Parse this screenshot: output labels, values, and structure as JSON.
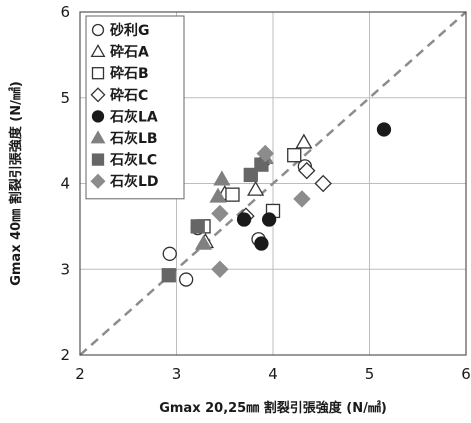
{
  "chart_data": {
    "type": "scatter",
    "xlabel": "Gmax 20,25㎜ 割裂引張強度 (N/㎟)",
    "ylabel": "Gmax 40㎜ 割裂引張強度 (N/㎟)",
    "xlim": [
      2,
      6
    ],
    "ylim": [
      2,
      6
    ],
    "x_ticks": [
      "2",
      "3",
      "4",
      "5",
      "6"
    ],
    "y_ticks": [
      "2",
      "3",
      "4",
      "5",
      "6"
    ],
    "grid": true,
    "legend_position": "top-left",
    "reference_line": {
      "from": [
        2,
        2
      ],
      "to": [
        6,
        6
      ],
      "style": "dashed",
      "color": "#8c8c8c"
    },
    "series": [
      {
        "name": "砂利G",
        "marker": "circle",
        "filled": false,
        "color": "#333333",
        "points": [
          [
            2.93,
            3.18
          ],
          [
            3.1,
            2.88
          ],
          [
            3.22,
            3.48
          ],
          [
            3.85,
            3.35
          ],
          [
            4.33,
            4.2
          ]
        ]
      },
      {
        "name": "砕石A",
        "marker": "triangle",
        "filled": false,
        "color": "#333333",
        "points": [
          [
            3.3,
            3.32
          ],
          [
            3.5,
            3.88
          ],
          [
            3.82,
            3.93
          ],
          [
            4.32,
            4.48
          ]
        ]
      },
      {
        "name": "砕石B",
        "marker": "square",
        "filled": false,
        "color": "#333333",
        "points": [
          [
            3.28,
            3.5
          ],
          [
            3.58,
            3.87
          ],
          [
            4.0,
            3.68
          ],
          [
            4.22,
            4.33
          ]
        ]
      },
      {
        "name": "砕石C",
        "marker": "diamond",
        "filled": false,
        "color": "#999999",
        "points": [
          [
            3.72,
            3.62
          ],
          [
            3.9,
            4.25
          ],
          [
            4.35,
            4.15
          ],
          [
            4.52,
            4.0
          ]
        ]
      },
      {
        "name": "石灰LA",
        "marker": "circle",
        "filled": true,
        "color": "#1a1a1a",
        "points": [
          [
            3.7,
            3.58
          ],
          [
            3.88,
            3.3
          ],
          [
            3.96,
            3.58
          ],
          [
            5.15,
            4.63
          ]
        ]
      },
      {
        "name": "石灰LB",
        "marker": "triangle",
        "filled": true,
        "color": "#808080",
        "points": [
          [
            3.28,
            3.3
          ],
          [
            3.43,
            3.85
          ],
          [
            3.47,
            4.05
          ],
          [
            3.92,
            4.3
          ]
        ]
      },
      {
        "name": "石灰LC",
        "marker": "square",
        "filled": true,
        "color": "#666666",
        "points": [
          [
            2.92,
            2.93
          ],
          [
            3.22,
            3.5
          ],
          [
            3.77,
            4.1
          ],
          [
            3.88,
            4.22
          ]
        ]
      },
      {
        "name": "石灰LD",
        "marker": "diamond",
        "filled": true,
        "color": "#8c8c8c",
        "points": [
          [
            3.45,
            3.0
          ],
          [
            3.45,
            3.65
          ],
          [
            3.92,
            4.35
          ],
          [
            4.3,
            3.82
          ]
        ]
      }
    ]
  }
}
